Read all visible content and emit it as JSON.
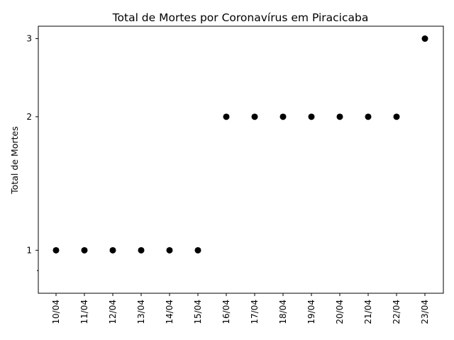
{
  "chart_data": {
    "type": "scatter",
    "title": "Total de Mortes por Coronavírus em Piracicaba",
    "xlabel": "",
    "ylabel": "Total de Mortes",
    "y_scale": "log",
    "ylim": [
      0.8,
      3.2
    ],
    "y_ticks": [
      1,
      2,
      3
    ],
    "y_tick_labels": [
      "1",
      "2",
      "3"
    ],
    "y_minor_ticks": [
      0.9
    ],
    "grid": false,
    "legend": "none",
    "marker_color": "#000000",
    "x": [
      "10/04",
      "11/04",
      "12/04",
      "13/04",
      "14/04",
      "15/04",
      "16/04",
      "17/04",
      "18/04",
      "19/04",
      "20/04",
      "21/04",
      "22/04",
      "23/04"
    ],
    "series": [
      {
        "values": [
          1,
          1,
          1,
          1,
          1,
          1,
          2,
          2,
          2,
          2,
          2,
          2,
          2,
          3
        ]
      }
    ]
  }
}
